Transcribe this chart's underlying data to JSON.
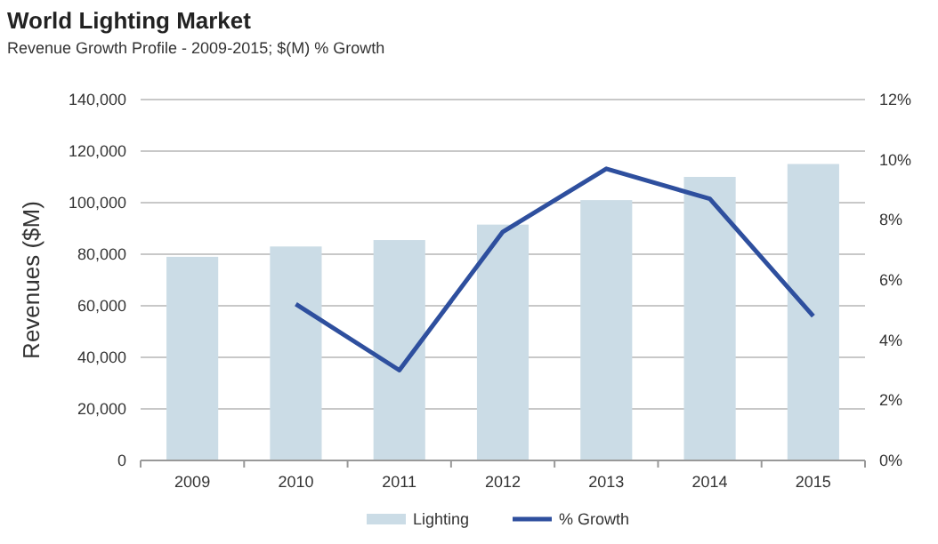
{
  "chart_data": {
    "type": "bar",
    "title": "World Lighting Market",
    "subtitle": "Revenue Growth Profile - 2009-2015;  $(M) % Growth",
    "ylabel": "Revenues ($M)",
    "categories": [
      "2009",
      "2010",
      "2011",
      "2012",
      "2013",
      "2014",
      "2015"
    ],
    "series": [
      {
        "name": "Lighting",
        "color": "#cbdce6",
        "values": [
          79000,
          83000,
          85500,
          91500,
          101000,
          110000,
          115000
        ]
      },
      {
        "name": "% Growth",
        "type": "line",
        "axis": "y2",
        "color": "#2e4f9e",
        "values": [
          null,
          5.2,
          3.0,
          7.6,
          9.7,
          8.7,
          4.8
        ]
      }
    ],
    "ylim": [
      0,
      140000
    ],
    "yticks": [
      {
        "value": 0,
        "label": "0"
      },
      {
        "value": 20000,
        "label": "20,000"
      },
      {
        "value": 40000,
        "label": "40,000"
      },
      {
        "value": 60000,
        "label": "60,000"
      },
      {
        "value": 80000,
        "label": "80,000"
      },
      {
        "value": 100000,
        "label": "100,000"
      },
      {
        "value": 120000,
        "label": "120,000"
      },
      {
        "value": 140000,
        "label": "140,000"
      }
    ],
    "y2lim": [
      0,
      12
    ],
    "y2ticks": [
      {
        "value": 0,
        "label": "0%"
      },
      {
        "value": 2,
        "label": "2%"
      },
      {
        "value": 4,
        "label": "4%"
      },
      {
        "value": 6,
        "label": "6%"
      },
      {
        "value": 8,
        "label": "8%"
      },
      {
        "value": 10,
        "label": "10%"
      },
      {
        "value": 12,
        "label": "12%"
      }
    ],
    "grid": "y",
    "legend": "bottom",
    "marker": "none",
    "line_style": "solid"
  }
}
